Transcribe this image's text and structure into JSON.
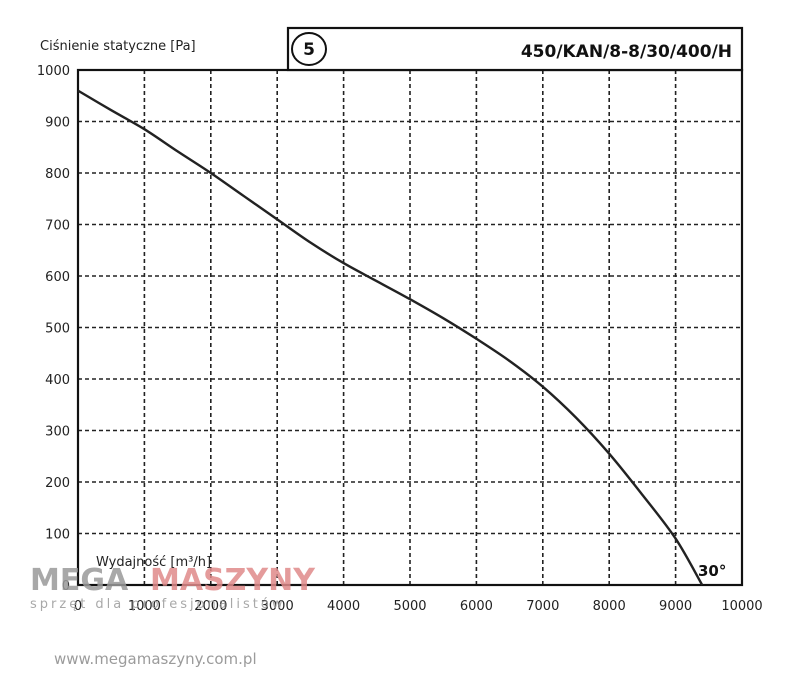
{
  "chart_data": {
    "type": "line",
    "title": "450/KAN/8-8/30/400/H",
    "badge": "5",
    "ylabel": "Ciśnienie statyczne [Pa]",
    "xlabel": "Wydajność [m³/h]",
    "xlim": [
      0,
      10000
    ],
    "ylim": [
      0,
      1000
    ],
    "x_ticks": [
      "0",
      "1000",
      "2000",
      "3000",
      "4000",
      "5000",
      "6000",
      "7000",
      "8000",
      "9000",
      "10000"
    ],
    "y_ticks": [
      "0",
      "100",
      "200",
      "300",
      "400",
      "500",
      "600",
      "700",
      "800",
      "900",
      "1000"
    ],
    "grid": true,
    "annotation": "30°",
    "series": [
      {
        "x": [
          0,
          500,
          1000,
          1500,
          2000,
          2500,
          3000,
          3500,
          4000,
          4500,
          5000,
          5500,
          6000,
          6500,
          7000,
          7500,
          8000,
          8500,
          9000,
          9400
        ],
        "y": [
          960,
          922,
          885,
          842,
          800,
          755,
          710,
          665,
          625,
          590,
          555,
          518,
          478,
          435,
          385,
          325,
          255,
          175,
          90,
          0
        ]
      }
    ]
  },
  "watermark": {
    "brand_a": "MEGA",
    "brand_b": "MASZYNY",
    "tagline": "sprzęt dla profesjonalistów",
    "url": "www.megamaszyny.com.pl",
    "color_a": "#9a9a9a",
    "color_b": "#e08a8a"
  }
}
